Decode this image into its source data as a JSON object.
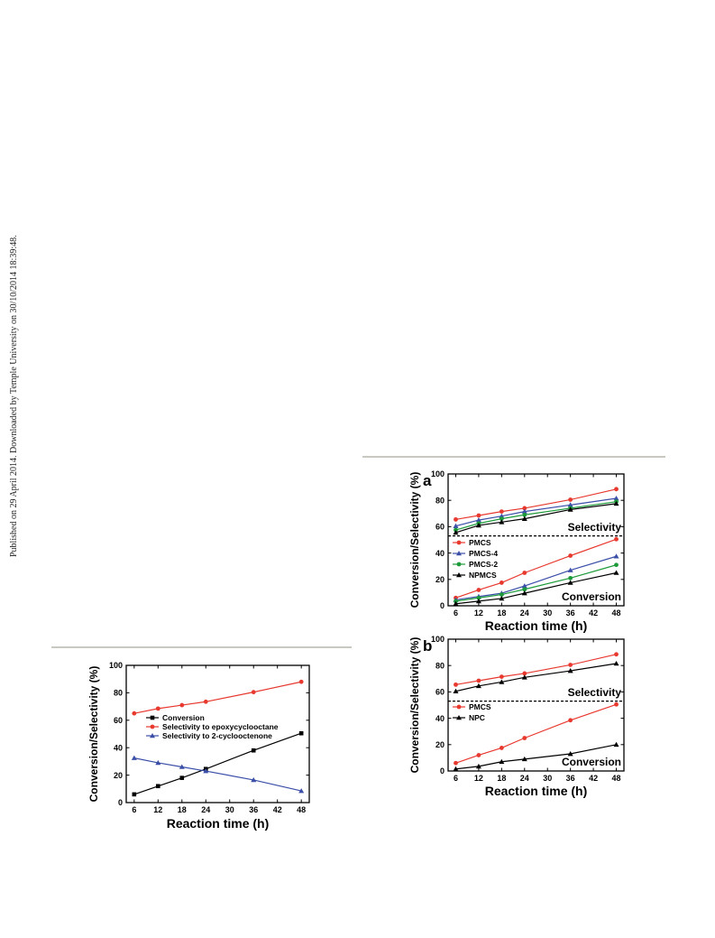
{
  "side_note": "Published on 29 April 2014. Downloaded by Temple University on 30/10/2014 18:39:48.",
  "chart_data": [
    {
      "id": "left",
      "type": "line",
      "panel_label": "",
      "xlabel": "Reaction time (h)",
      "ylabel": "Conversion/Selectivity (%)",
      "xlim": [
        4,
        50
      ],
      "ylim": [
        0,
        100
      ],
      "xticks": [
        6,
        12,
        18,
        24,
        30,
        36,
        42,
        48
      ],
      "yticks": [
        0,
        20,
        40,
        60,
        80,
        100
      ],
      "grid": false,
      "legend_position": "center-right",
      "x": [
        6,
        12,
        18,
        24,
        36,
        48
      ],
      "series": [
        {
          "name": "Conversion",
          "values": [
            6,
            12,
            18,
            24.5,
            38,
            50.5
          ],
          "color": "#000000",
          "marker": "square"
        },
        {
          "name": "Selectivity to epoxycyclooctane",
          "values": [
            65,
            68.5,
            71,
            73.5,
            80.5,
            88
          ],
          "color": "#e8392f",
          "marker": "circle"
        },
        {
          "name": "Selectivity to 2-cyclooctenone",
          "values": [
            32.5,
            29,
            26,
            23,
            16.5,
            8.5
          ],
          "color": "#3b4fa8",
          "marker": "triangle"
        }
      ],
      "annotations": []
    },
    {
      "id": "a",
      "type": "line",
      "panel_label": "a",
      "xlabel": "Reaction time (h)",
      "ylabel": "Conversion/Selectivity (%)",
      "xlim": [
        4,
        50
      ],
      "ylim": [
        0,
        100
      ],
      "xticks": [
        6,
        12,
        18,
        24,
        30,
        36,
        42,
        48
      ],
      "yticks": [
        0,
        20,
        40,
        60,
        80,
        100
      ],
      "grid": false,
      "legend_position": "middle-left",
      "divider_y": 53,
      "x": [
        6,
        12,
        18,
        24,
        36,
        48
      ],
      "series": [
        {
          "name": "PMCS",
          "color": "#e8392f",
          "marker": "circle",
          "selectivity": [
            65.5,
            68.5,
            71.5,
            74,
            80.5,
            88.5
          ],
          "conversion": [
            6,
            12,
            17.5,
            25,
            38,
            50.5
          ]
        },
        {
          "name": "PMCS-4",
          "color": "#3b4fa8",
          "marker": "triangle",
          "selectivity": [
            60.5,
            65,
            68,
            71.5,
            76.5,
            81.5
          ],
          "conversion": [
            4.5,
            7,
            9.5,
            15,
            27,
            37.5
          ]
        },
        {
          "name": "PMCS-2",
          "color": "#1d9b3a",
          "marker": "circle",
          "selectivity": [
            57.5,
            62.5,
            66,
            69,
            74,
            79
          ],
          "conversion": [
            3.5,
            6,
            8.5,
            12.5,
            21,
            31
          ]
        },
        {
          "name": "NPMCS",
          "color": "#000000",
          "marker": "triangle",
          "selectivity": [
            55.5,
            61,
            63.5,
            66,
            73,
            77.5
          ],
          "conversion": [
            1.5,
            3.5,
            5.5,
            9.5,
            17.5,
            25
          ]
        }
      ],
      "annotations": [
        "Selectivity",
        "Conversion"
      ]
    },
    {
      "id": "b",
      "type": "line",
      "panel_label": "b",
      "xlabel": "Reaction time (h)",
      "ylabel": "Conversion/Selectivity (%)",
      "xlim": [
        4,
        50
      ],
      "ylim": [
        0,
        100
      ],
      "xticks": [
        6,
        12,
        18,
        24,
        30,
        36,
        42,
        48
      ],
      "yticks": [
        0,
        20,
        40,
        60,
        80,
        100
      ],
      "grid": false,
      "legend_position": "middle-left",
      "divider_y": 53,
      "x": [
        6,
        12,
        18,
        24,
        36,
        48
      ],
      "series": [
        {
          "name": "PMCS",
          "color": "#e8392f",
          "marker": "circle",
          "selectivity": [
            65.5,
            68.5,
            71.5,
            74,
            80.5,
            88.5
          ],
          "conversion": [
            6,
            12,
            17.5,
            25,
            38.5,
            50.5
          ]
        },
        {
          "name": "NPC",
          "color": "#000000",
          "marker": "triangle",
          "selectivity": [
            60.5,
            64.5,
            67.5,
            71,
            76,
            81.5
          ],
          "conversion": [
            1.5,
            3.5,
            7,
            9,
            13,
            20
          ]
        }
      ],
      "annotations": [
        "Selectivity",
        "Conversion"
      ]
    }
  ]
}
